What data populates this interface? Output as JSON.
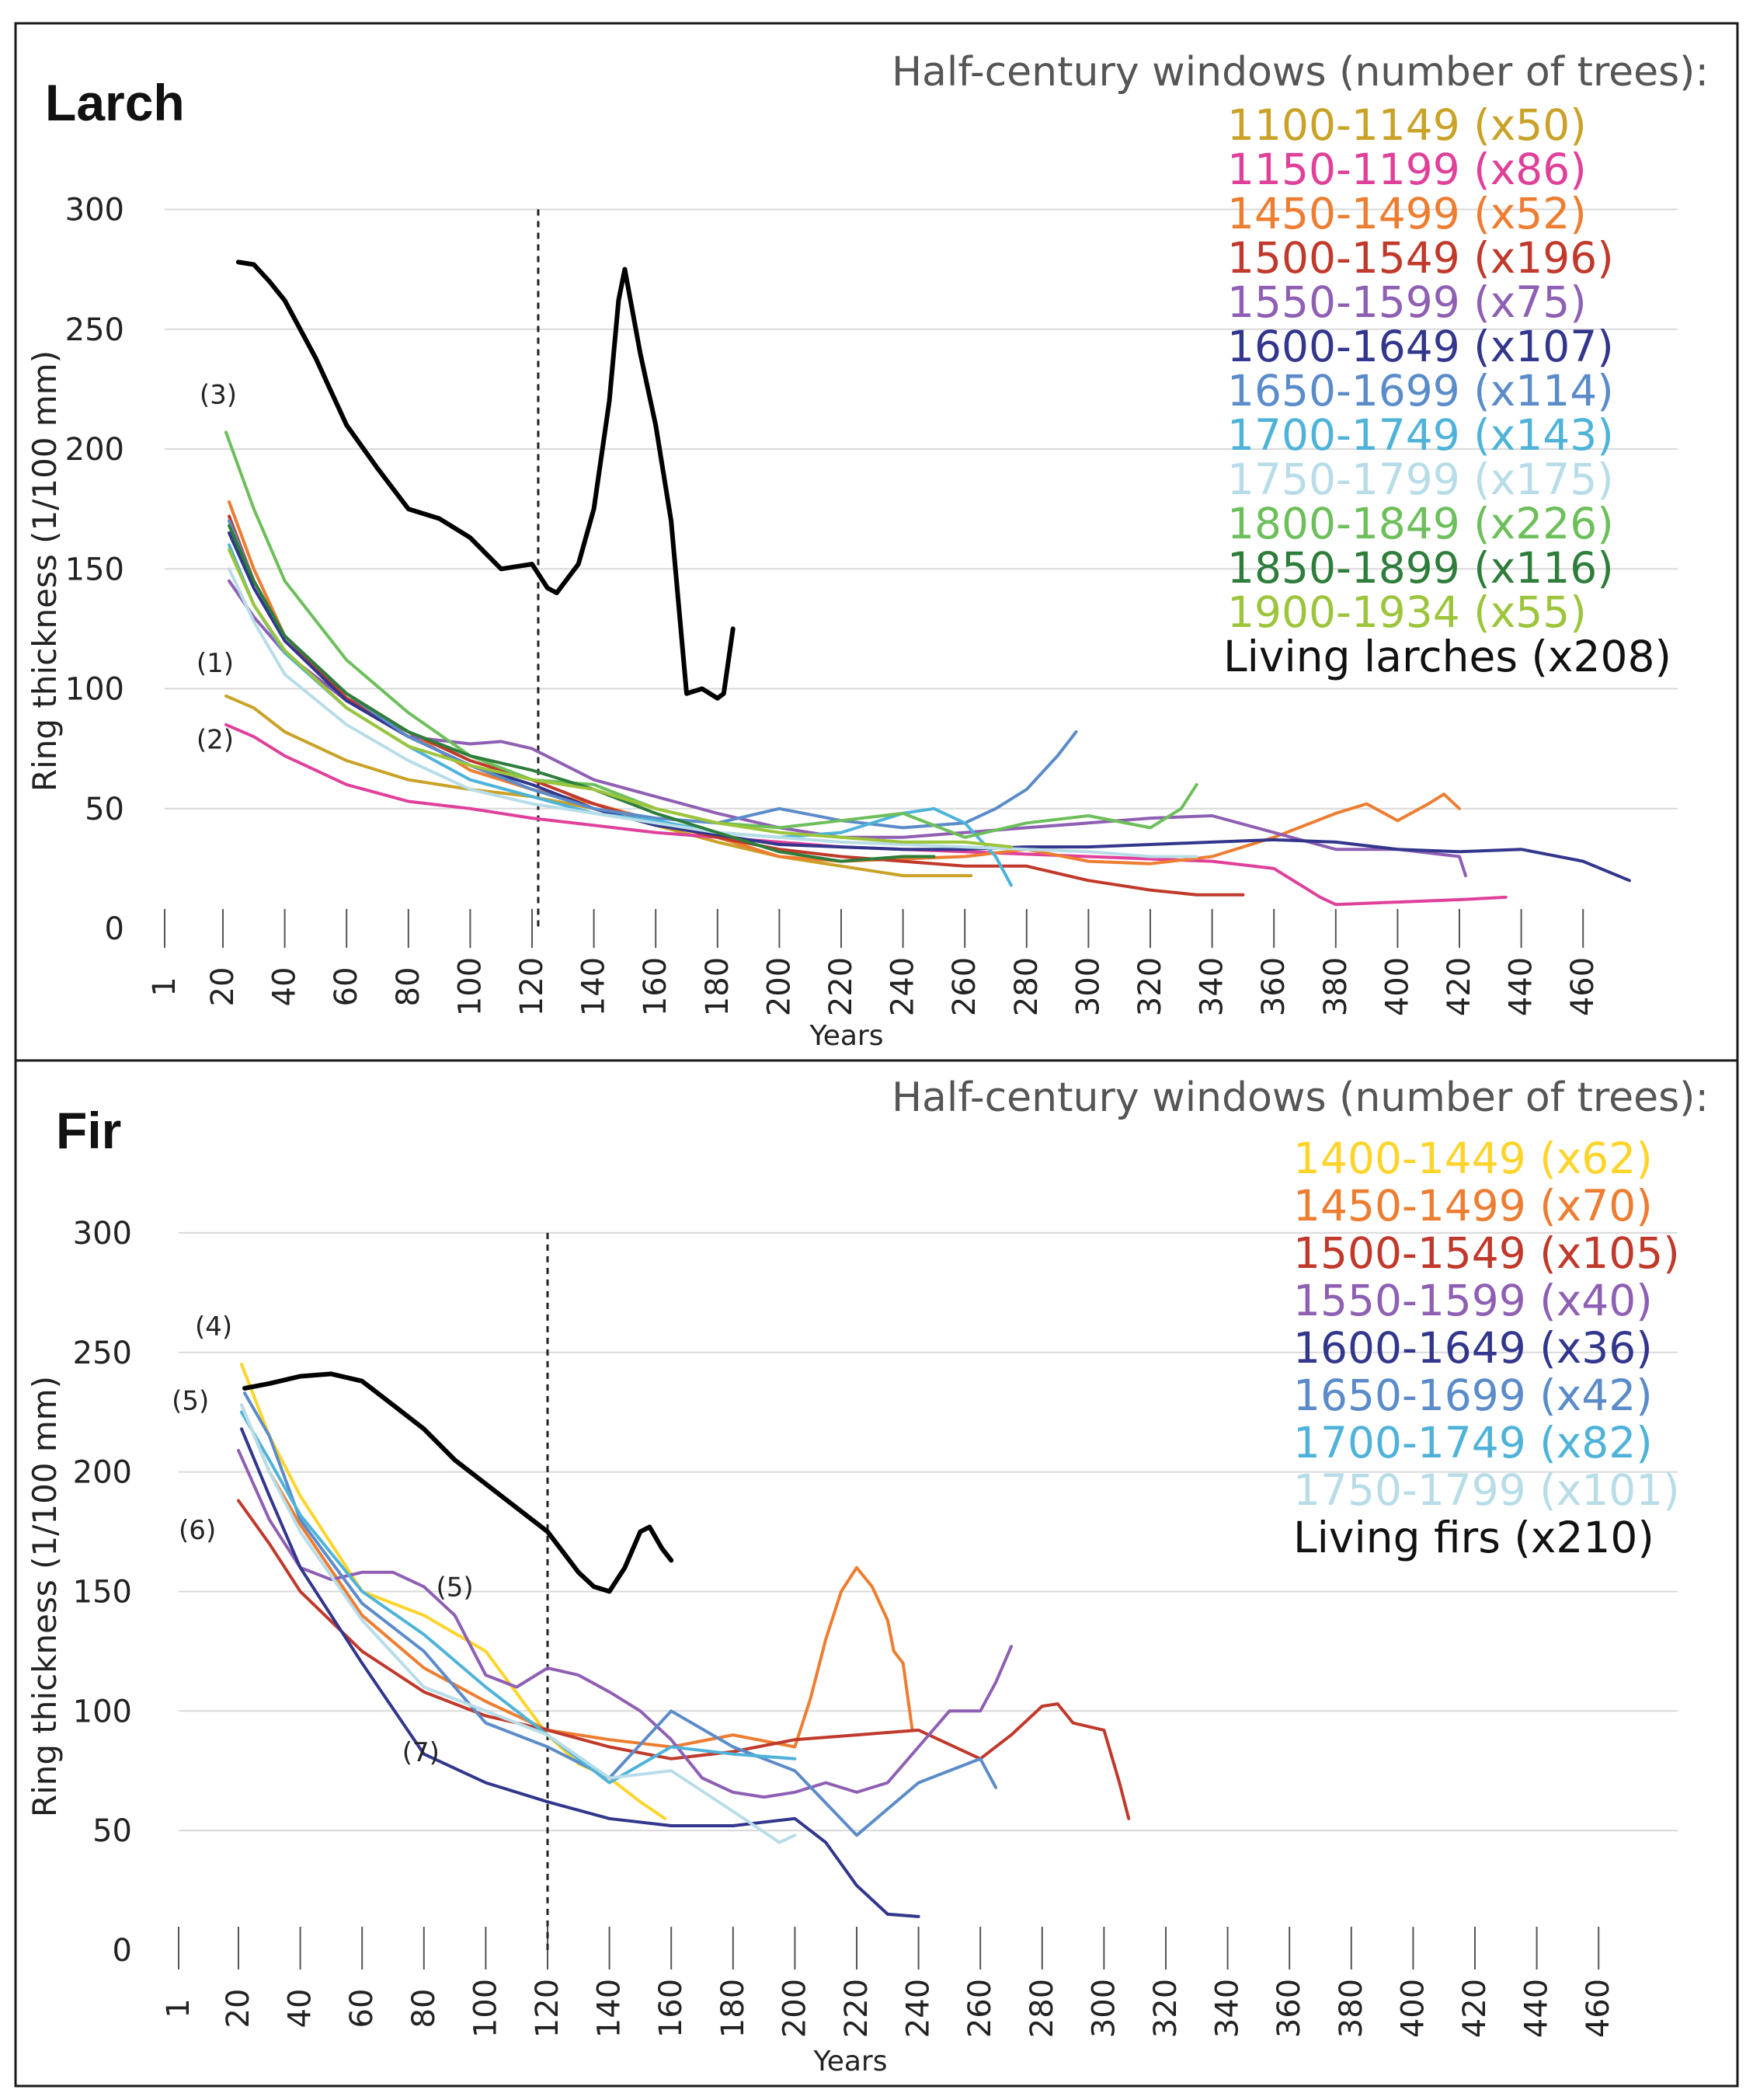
{
  "chart_data": [
    {
      "type": "line",
      "title": "Larch",
      "xlabel": "Years",
      "ylabel": "Ring thickness (1/100 mm)",
      "x_ticks": [
        "1",
        "20",
        "40",
        "60",
        "80",
        "100",
        "120",
        "140",
        "160",
        "180",
        "200",
        "220",
        "240",
        "260",
        "280",
        "300",
        "320",
        "340",
        "360",
        "380",
        "400",
        "420",
        "440",
        "460"
      ],
      "xlim": [
        1,
        480
      ],
      "y_ticks": [
        "0",
        "50",
        "100",
        "150",
        "200",
        "250",
        "300"
      ],
      "ylim": [
        0,
        300
      ],
      "vline_x": 122,
      "legend_title": "Half-century windows (number of trees):",
      "annotations": [
        {
          "text": "(1)",
          "x": 20,
          "y": 107
        },
        {
          "text": "(2)",
          "x": 20,
          "y": 75
        },
        {
          "text": "(3)",
          "x": 21,
          "y": 219
        }
      ],
      "series": [
        {
          "name": "1100-1149 (x50)",
          "color": "#c9a227",
          "x": [
            21,
            30,
            40,
            60,
            80,
            100,
            120,
            140,
            160,
            180,
            200,
            220,
            240,
            262
          ],
          "y": [
            97,
            92,
            82,
            70,
            62,
            58,
            55,
            50,
            43,
            36,
            30,
            26,
            22,
            22
          ]
        },
        {
          "name": "1150-1199 (x86)",
          "color": "#e0409a",
          "x": [
            21,
            30,
            40,
            60,
            80,
            100,
            120,
            140,
            160,
            180,
            200,
            220,
            240,
            260,
            300,
            340,
            360,
            375,
            380,
            400,
            420,
            435
          ],
          "y": [
            85,
            80,
            72,
            60,
            53,
            50,
            46,
            43,
            40,
            38,
            36,
            34,
            33,
            32,
            30,
            28,
            25,
            13,
            10,
            11,
            12,
            13
          ]
        },
        {
          "name": "1450-1499 (x52)",
          "color": "#ed7d31",
          "x": [
            22,
            30,
            40,
            60,
            80,
            100,
            120,
            140,
            160,
            180,
            200,
            220,
            240,
            260,
            280,
            300,
            320,
            340,
            360,
            380,
            390,
            400,
            410,
            415,
            420
          ],
          "y": [
            178,
            150,
            122,
            98,
            82,
            66,
            58,
            52,
            45,
            38,
            30,
            28,
            29,
            30,
            33,
            28,
            27,
            30,
            38,
            48,
            52,
            45,
            52,
            56,
            50
          ]
        },
        {
          "name": "1500-1549 (x196)",
          "color": "#c0392b",
          "x": [
            22,
            30,
            40,
            60,
            80,
            100,
            120,
            140,
            160,
            180,
            200,
            220,
            240,
            260,
            280,
            300,
            320,
            335,
            350
          ],
          "y": [
            172,
            145,
            122,
            96,
            82,
            70,
            62,
            52,
            44,
            38,
            33,
            30,
            28,
            26,
            26,
            20,
            16,
            14,
            14
          ]
        },
        {
          "name": "1550-1599 (x75)",
          "color": "#8e5fb3",
          "x": [
            22,
            30,
            40,
            60,
            80,
            100,
            110,
            120,
            140,
            160,
            180,
            200,
            220,
            240,
            260,
            280,
            300,
            320,
            340,
            360,
            380,
            400,
            420,
            422
          ],
          "y": [
            145,
            130,
            115,
            95,
            80,
            77,
            78,
            75,
            62,
            55,
            48,
            42,
            38,
            38,
            40,
            42,
            44,
            46,
            47,
            40,
            33,
            33,
            30,
            22
          ]
        },
        {
          "name": "1600-1649 (x107)",
          "color": "#32368c",
          "x": [
            22,
            30,
            40,
            60,
            80,
            100,
            120,
            140,
            160,
            180,
            200,
            220,
            240,
            260,
            280,
            300,
            320,
            340,
            360,
            380,
            400,
            420,
            440,
            460,
            475
          ],
          "y": [
            165,
            142,
            120,
            95,
            80,
            68,
            60,
            50,
            43,
            39,
            35,
            34,
            33,
            33,
            34,
            34,
            35,
            36,
            37,
            36,
            33,
            32,
            33,
            28,
            20
          ]
        },
        {
          "name": "1650-1699 (x114)",
          "color": "#5b8cc9",
          "x": [
            22,
            30,
            40,
            60,
            80,
            100,
            120,
            140,
            160,
            180,
            200,
            220,
            240,
            260,
            270,
            280,
            290,
            296
          ],
          "y": [
            170,
            145,
            122,
            98,
            80,
            68,
            58,
            50,
            46,
            44,
            50,
            45,
            42,
            44,
            50,
            58,
            72,
            82
          ]
        },
        {
          "name": "1700-1749 (x143)",
          "color": "#4fb3d9",
          "x": [
            22,
            30,
            40,
            60,
            80,
            100,
            120,
            140,
            160,
            180,
            200,
            220,
            240,
            250,
            260,
            270,
            275
          ],
          "y": [
            160,
            135,
            115,
            92,
            76,
            62,
            55,
            48,
            45,
            40,
            38,
            40,
            48,
            50,
            44,
            30,
            18
          ]
        },
        {
          "name": "1750-1799 (x175)",
          "color": "#b8dde8",
          "x": [
            22,
            30,
            40,
            60,
            80,
            100,
            120,
            140,
            160,
            180,
            200,
            220,
            240,
            260,
            280,
            300,
            320,
            335
          ],
          "y": [
            150,
            128,
            106,
            85,
            70,
            58,
            52,
            48,
            44,
            40,
            38,
            36,
            35,
            34,
            33,
            32,
            30,
            30
          ]
        },
        {
          "name": "1800-1849 (x226)",
          "color": "#6dbf5b",
          "x": [
            21,
            30,
            40,
            60,
            80,
            100,
            120,
            140,
            160,
            180,
            200,
            220,
            240,
            260,
            280,
            300,
            320,
            330,
            335
          ],
          "y": [
            207,
            175,
            145,
            112,
            90,
            72,
            62,
            60,
            50,
            44,
            42,
            45,
            48,
            38,
            44,
            47,
            42,
            50,
            60
          ]
        },
        {
          "name": "1850-1899 (x116)",
          "color": "#2e7d3b",
          "x": [
            22,
            30,
            40,
            60,
            80,
            100,
            120,
            140,
            160,
            180,
            200,
            220,
            240,
            250
          ],
          "y": [
            168,
            145,
            122,
            98,
            82,
            72,
            66,
            58,
            48,
            40,
            32,
            28,
            30,
            30
          ]
        },
        {
          "name": "1900-1934 (x55)",
          "color": "#9cc53c",
          "x": [
            22,
            30,
            40,
            60,
            80,
            100,
            120,
            140,
            160,
            180,
            200,
            220,
            240,
            260,
            275
          ],
          "y": [
            158,
            135,
            116,
            92,
            76,
            68,
            62,
            58,
            50,
            44,
            40,
            38,
            36,
            36,
            34
          ]
        },
        {
          "name": "Living larches (x208)",
          "color": "#000000",
          "x": [
            25,
            30,
            35,
            40,
            50,
            60,
            70,
            80,
            90,
            100,
            110,
            115,
            120,
            125,
            128,
            135,
            140,
            145,
            148,
            150,
            155,
            160,
            165,
            170,
            175,
            180,
            182,
            185
          ],
          "y": [
            278,
            277,
            270,
            262,
            238,
            210,
            192,
            175,
            171,
            163,
            150,
            151,
            152,
            142,
            140,
            152,
            175,
            220,
            262,
            275,
            240,
            210,
            170,
            98,
            100,
            96,
            98,
            125
          ]
        }
      ]
    },
    {
      "type": "line",
      "title": "Fir",
      "xlabel": "Years",
      "ylabel": "Ring thickness (1/100 mm)",
      "x_ticks": [
        "1",
        "20",
        "40",
        "60",
        "80",
        "100",
        "120",
        "140",
        "160",
        "180",
        "200",
        "220",
        "240",
        "260",
        "280",
        "300",
        "320",
        "340",
        "360",
        "380",
        "400",
        "420",
        "440",
        "460"
      ],
      "xlim": [
        1,
        480
      ],
      "y_ticks": [
        "0",
        "50",
        "100",
        "150",
        "200",
        "250",
        "300"
      ],
      "ylim": [
        0,
        300
      ],
      "vline_x": 120,
      "legend_title": "Half-century windows (number of trees):",
      "annotations": [
        {
          "text": "(4)",
          "x": 17,
          "y": 257
        },
        {
          "text": "(5)",
          "x": 12,
          "y": 226
        },
        {
          "text": "(6)",
          "x": 13,
          "y": 172
        },
        {
          "text": "(5)",
          "x": 90,
          "y": 148
        },
        {
          "text": "(7)",
          "x": 79,
          "y": 79
        }
      ],
      "series": [
        {
          "name": "1400-1449 (x62)",
          "color": "#ffd42a",
          "x": [
            21,
            30,
            40,
            60,
            80,
            100,
            120,
            130,
            140,
            150,
            158
          ],
          "y": [
            245,
            215,
            190,
            150,
            140,
            125,
            90,
            78,
            72,
            62,
            55
          ]
        },
        {
          "name": "1450-1499 (x70)",
          "color": "#ed7d31",
          "x": [
            21,
            30,
            40,
            60,
            80,
            100,
            120,
            140,
            160,
            180,
            200,
            205,
            210,
            215,
            220,
            225,
            230,
            232,
            235,
            238
          ],
          "y": [
            228,
            200,
            178,
            140,
            118,
            104,
            92,
            88,
            85,
            90,
            85,
            105,
            130,
            150,
            160,
            152,
            138,
            125,
            120,
            92
          ]
        },
        {
          "name": "1500-1549 (x105)",
          "color": "#c0392b",
          "x": [
            20,
            30,
            40,
            60,
            80,
            100,
            120,
            140,
            160,
            180,
            200,
            220,
            240,
            260,
            270,
            280,
            285,
            290,
            300,
            305,
            308
          ],
          "y": [
            188,
            170,
            150,
            125,
            108,
            98,
            92,
            85,
            80,
            83,
            88,
            90,
            92,
            80,
            90,
            102,
            103,
            95,
            92,
            70,
            55
          ]
        },
        {
          "name": "1550-1599 (x40)",
          "color": "#8e5fb3",
          "x": [
            20,
            30,
            40,
            50,
            60,
            70,
            80,
            90,
            100,
            110,
            120,
            130,
            140,
            150,
            160,
            170,
            180,
            190,
            200,
            210,
            220,
            230,
            240,
            250,
            260,
            265,
            270
          ],
          "y": [
            209,
            180,
            160,
            155,
            158,
            158,
            152,
            140,
            115,
            110,
            118,
            115,
            108,
            100,
            88,
            72,
            66,
            64,
            66,
            70,
            66,
            70,
            85,
            100,
            100,
            112,
            127
          ]
        },
        {
          "name": "1600-1649 (x36)",
          "color": "#32368c",
          "x": [
            21,
            30,
            40,
            60,
            80,
            100,
            120,
            140,
            160,
            180,
            200,
            210,
            220,
            230,
            240
          ],
          "y": [
            218,
            190,
            160,
            120,
            82,
            70,
            62,
            55,
            52,
            52,
            55,
            45,
            27,
            15,
            14
          ]
        },
        {
          "name": "1650-1699 (x42)",
          "color": "#5b8cc9",
          "x": [
            22,
            30,
            40,
            60,
            80,
            100,
            120,
            140,
            160,
            180,
            200,
            220,
            240,
            260,
            265
          ],
          "y": [
            233,
            215,
            180,
            145,
            125,
            95,
            85,
            72,
            100,
            85,
            75,
            48,
            70,
            80,
            68
          ]
        },
        {
          "name": "1700-1749 (x82)",
          "color": "#4fb3d9",
          "x": [
            21,
            30,
            40,
            60,
            80,
            100,
            120,
            140,
            160,
            180,
            200
          ],
          "y": [
            225,
            205,
            182,
            150,
            132,
            110,
            90,
            70,
            85,
            82,
            80
          ]
        },
        {
          "name": "1750-1799 (x101)",
          "color": "#b8dde8",
          "x": [
            21,
            30,
            40,
            60,
            80,
            100,
            120,
            140,
            160,
            180,
            195,
            200
          ],
          "y": [
            228,
            200,
            175,
            138,
            110,
            100,
            90,
            72,
            75,
            58,
            45,
            48
          ]
        },
        {
          "name": "Living firs (x210)",
          "color": "#000000",
          "x": [
            22,
            30,
            40,
            50,
            60,
            70,
            80,
            90,
            100,
            110,
            120,
            130,
            135,
            140,
            145,
            150,
            153,
            157,
            160
          ],
          "y": [
            235,
            237,
            240,
            241,
            238,
            228,
            218,
            205,
            195,
            185,
            175,
            158,
            152,
            150,
            160,
            175,
            177,
            168,
            163
          ]
        }
      ]
    }
  ]
}
